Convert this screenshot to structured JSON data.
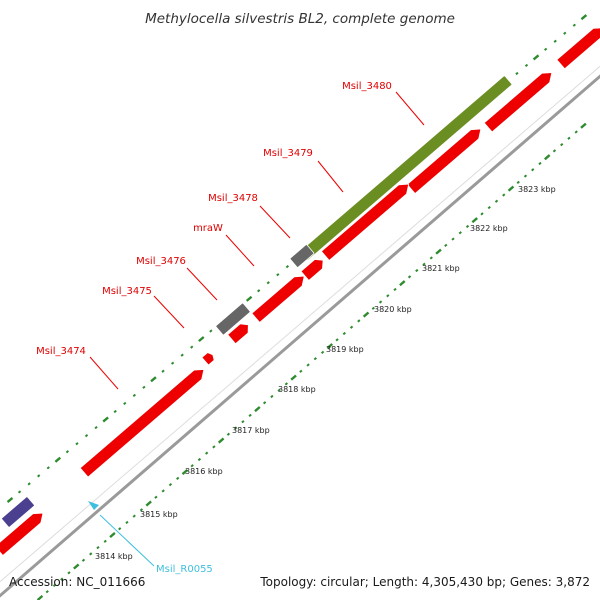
{
  "title": "Methylocella silvestris BL2, complete genome",
  "footer": {
    "accession": "Accession: NC_011666",
    "summary": "Topology: circular; Length: 4,305,430 bp; Genes: 3,872"
  },
  "colors": {
    "cds": "#ee0000",
    "operon": "#6b8e23",
    "gray_feature": "#666666",
    "purple_feature": "#4b3f8f",
    "rna": "#3fbfdf",
    "backbone": "#999999",
    "ticks": "#2e8b2e"
  },
  "gene_labels": [
    {
      "text": "Msil_3480"
    },
    {
      "text": "Msil_3479"
    },
    {
      "text": "Msil_3478"
    },
    {
      "text": "mraW"
    },
    {
      "text": "Msil_3476"
    },
    {
      "text": "Msil_3475"
    },
    {
      "text": "Msil_3474"
    }
  ],
  "rna_label": {
    "text": "Msil_R0055"
  },
  "kbp_labels": [
    "3823 kbp",
    "3822 kbp",
    "3821 kbp",
    "3820 kbp",
    "3819 kbp",
    "3818 kbp",
    "3817 kbp",
    "3816 kbp",
    "3815 kbp",
    "3814 kbp"
  ]
}
